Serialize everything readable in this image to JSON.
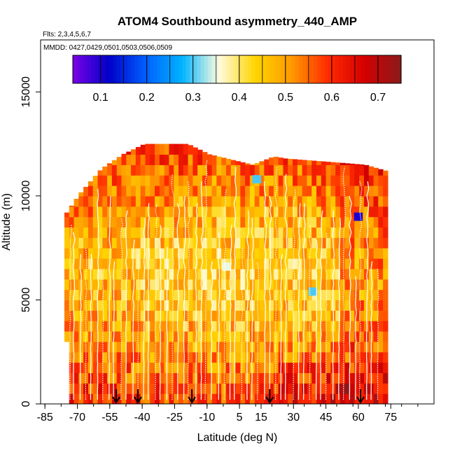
{
  "chart_data": {
    "type": "heatmap",
    "title": "ATOM4 Southbound asymmetry_440_AMP",
    "flights_text": "Flts: 2,3,4,5,6,7",
    "mmdd_text": "MMDD: 0427,0429,0501,0503,0506,0509",
    "xlabel": "Latitude (deg N)",
    "ylabel": "Altitude (m)",
    "xlim": [
      -87,
      95
    ],
    "ylim": [
      0,
      17500
    ],
    "x_ticks": [
      -85,
      -70,
      -55,
      -40,
      -25,
      -10,
      5,
      15,
      30,
      45,
      60,
      75
    ],
    "x_tick_labels": [
      "-85",
      "-70",
      "-55",
      "-40",
      "-25",
      "-10",
      "5",
      "15",
      "30",
      "45",
      "60",
      "75"
    ],
    "y_ticks": [
      0,
      5000,
      10000,
      15000
    ],
    "y_tick_labels": [
      "0",
      "5000",
      "10000",
      "15000"
    ],
    "colorbar": {
      "range": [
        0.04,
        0.75
      ],
      "ticks": [
        0.1,
        0.2,
        0.3,
        0.4,
        0.5,
        0.6,
        0.7
      ],
      "tick_labels": [
        "0.1",
        "0.2",
        "0.3",
        "0.4",
        "0.5",
        "0.6",
        "0.7"
      ],
      "colors": [
        "#7b00e6",
        "#0000c8",
        "#0060ff",
        "#00b4ff",
        "#fffce0",
        "#ffd500",
        "#ff9a00",
        "#ff2a00",
        "#d40000",
        "#8a1a1a"
      ]
    },
    "arrow_latitudes": [
      -52,
      -42,
      -17,
      19,
      61
    ],
    "envelope": [
      {
        "lat": -76,
        "top": 9200
      },
      {
        "lat": -70,
        "top": 10100
      },
      {
        "lat": -60,
        "top": 11300
      },
      {
        "lat": -50,
        "top": 12000
      },
      {
        "lat": -40,
        "top": 12500
      },
      {
        "lat": -20,
        "top": 12500
      },
      {
        "lat": -10,
        "top": 12000
      },
      {
        "lat": 10,
        "top": 11500
      },
      {
        "lat": 20,
        "top": 11900
      },
      {
        "lat": 25,
        "top": 11800
      },
      {
        "lat": 50,
        "top": 11600
      },
      {
        "lat": 62,
        "top": 11500
      },
      {
        "lat": 72,
        "top": 11200
      }
    ],
    "blue_patches": [
      {
        "lat": 13,
        "alt": 10600,
        "value": 0.3
      },
      {
        "lat": 60,
        "alt": 8800,
        "value": 0.1
      },
      {
        "lat": 39,
        "alt": 5200,
        "value": 0.3
      },
      {
        "lat": -1,
        "alt": 6400,
        "value": 0.35
      }
    ]
  }
}
